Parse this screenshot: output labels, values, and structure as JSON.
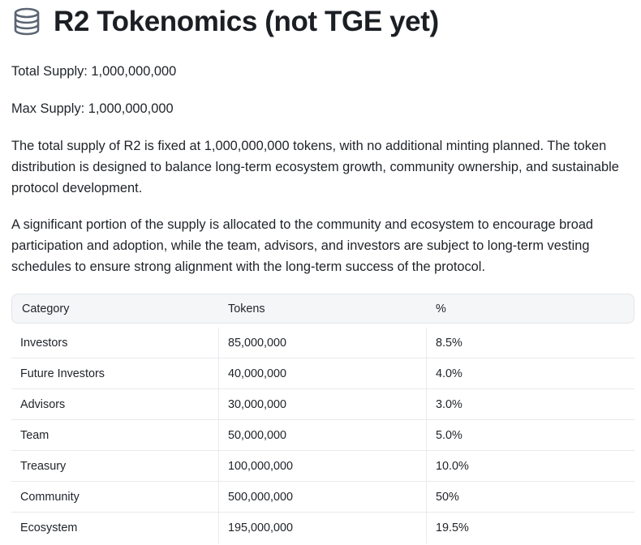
{
  "header": {
    "icon": "database-coins-icon",
    "title": "R2 Tokenomics (not TGE yet)"
  },
  "supply": {
    "total": "Total Supply: 1,000,000,000",
    "max": "Max Supply: 1,000,000,000"
  },
  "paragraphs": [
    "The total supply of R2 is fixed at 1,000,000,000 tokens, with no additional minting planned. The token distribution is designed to balance long-term ecosystem growth, community ownership, and sustainable protocol development.",
    "A significant portion of the supply is allocated to the community and ecosystem to encourage broad participation and adoption, while the team, advisors, and investors are subject to long-term vesting schedules to ensure strong alignment with the long-term success of the protocol."
  ],
  "table": {
    "headers": [
      "Category",
      "Tokens",
      "%"
    ],
    "rows": [
      [
        "Investors",
        "85,000,000",
        "8.5%"
      ],
      [
        "Future Investors",
        "40,000,000",
        "4.0%"
      ],
      [
        "Advisors",
        "30,000,000",
        "3.0%"
      ],
      [
        "Team",
        "50,000,000",
        "5.0%"
      ],
      [
        "Treasury",
        "100,000,000",
        "10.0%"
      ],
      [
        "Community",
        "500,000,000",
        "50%"
      ],
      [
        "Ecosystem",
        "195,000,000",
        "19.5%"
      ]
    ]
  },
  "colors": {
    "text": "#1f2328",
    "icon": "#5b6573",
    "header_bg": "#f5f6f8",
    "border": "#e3e5e8"
  }
}
